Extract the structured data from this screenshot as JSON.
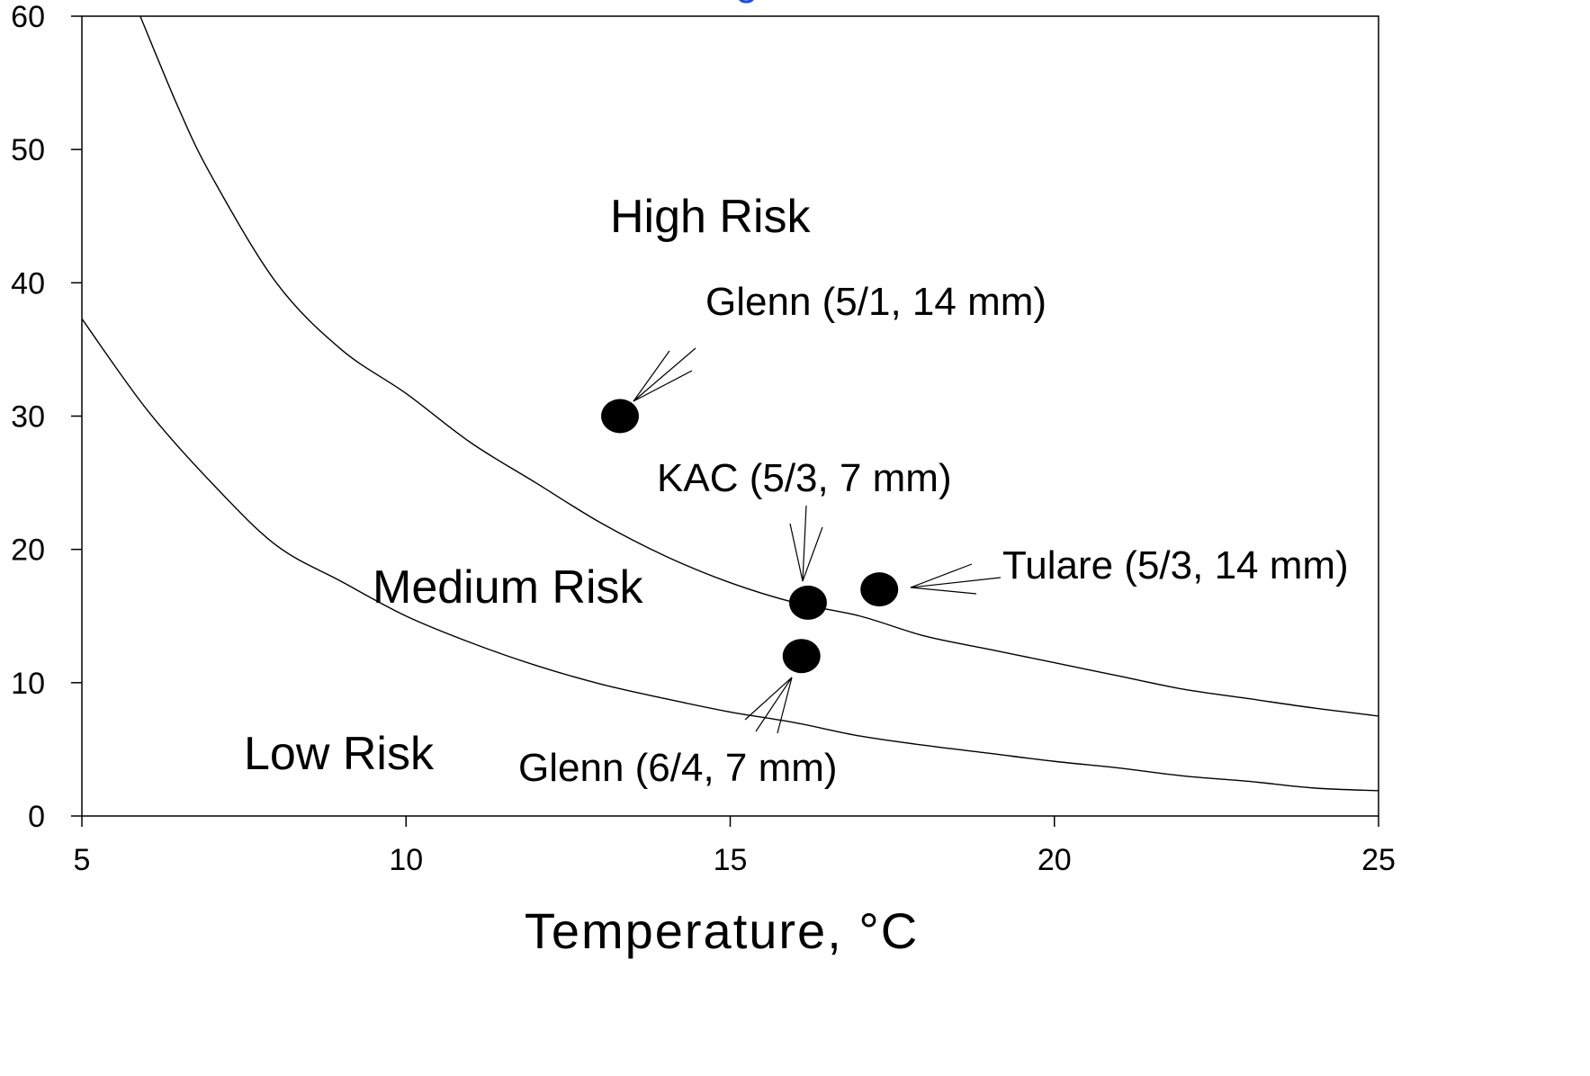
{
  "chart_data": {
    "type": "scatter",
    "title": "g",
    "xlabel": "Temperature, °C",
    "ylabel": "",
    "xlim": [
      5,
      25
    ],
    "ylim": [
      0,
      60
    ],
    "x_ticks": [
      "5",
      "10",
      "15",
      "20",
      "25"
    ],
    "y_ticks": [
      "0",
      "10",
      "20",
      "30",
      "40",
      "50",
      "60"
    ],
    "grid": false,
    "curves": [
      {
        "x": [
          5.9,
          6.5,
          7,
          8,
          9,
          10,
          11,
          12,
          13,
          14,
          15,
          16,
          17,
          18,
          19,
          20,
          21,
          22,
          23,
          24,
          25
        ],
        "y": [
          60,
          53,
          48,
          40,
          35,
          31.7,
          28,
          25,
          22,
          19.5,
          17.5,
          16,
          15,
          13.5,
          12.5,
          11.5,
          10.5,
          9.5,
          8.8,
          8.1,
          7.5
        ]
      },
      {
        "x": [
          5,
          6,
          7,
          8,
          9,
          10,
          11,
          12,
          13,
          14,
          15,
          16,
          17,
          18,
          19,
          20,
          21,
          22,
          23,
          24,
          25
        ],
        "y": [
          37.3,
          30.5,
          25,
          20.3,
          17.6,
          15,
          13,
          11.3,
          9.9,
          8.8,
          7.8,
          7,
          6,
          5.3,
          4.7,
          4.1,
          3.6,
          3,
          2.6,
          2.1,
          1.9
        ]
      }
    ],
    "points": [
      {
        "label": "Glenn (5/1, 14 mm)",
        "x": 13.3,
        "y": 30
      },
      {
        "label": "KAC (5/3, 7 mm)",
        "x": 16.2,
        "y": 16
      },
      {
        "label": "Tulare (5/3, 14 mm)",
        "x": 17.3,
        "y": 17
      },
      {
        "label": "Glenn (6/4, 7 mm)",
        "x": 16.1,
        "y": 12
      }
    ],
    "regions": [
      "High Risk",
      "Medium Risk",
      "Low Risk"
    ]
  }
}
